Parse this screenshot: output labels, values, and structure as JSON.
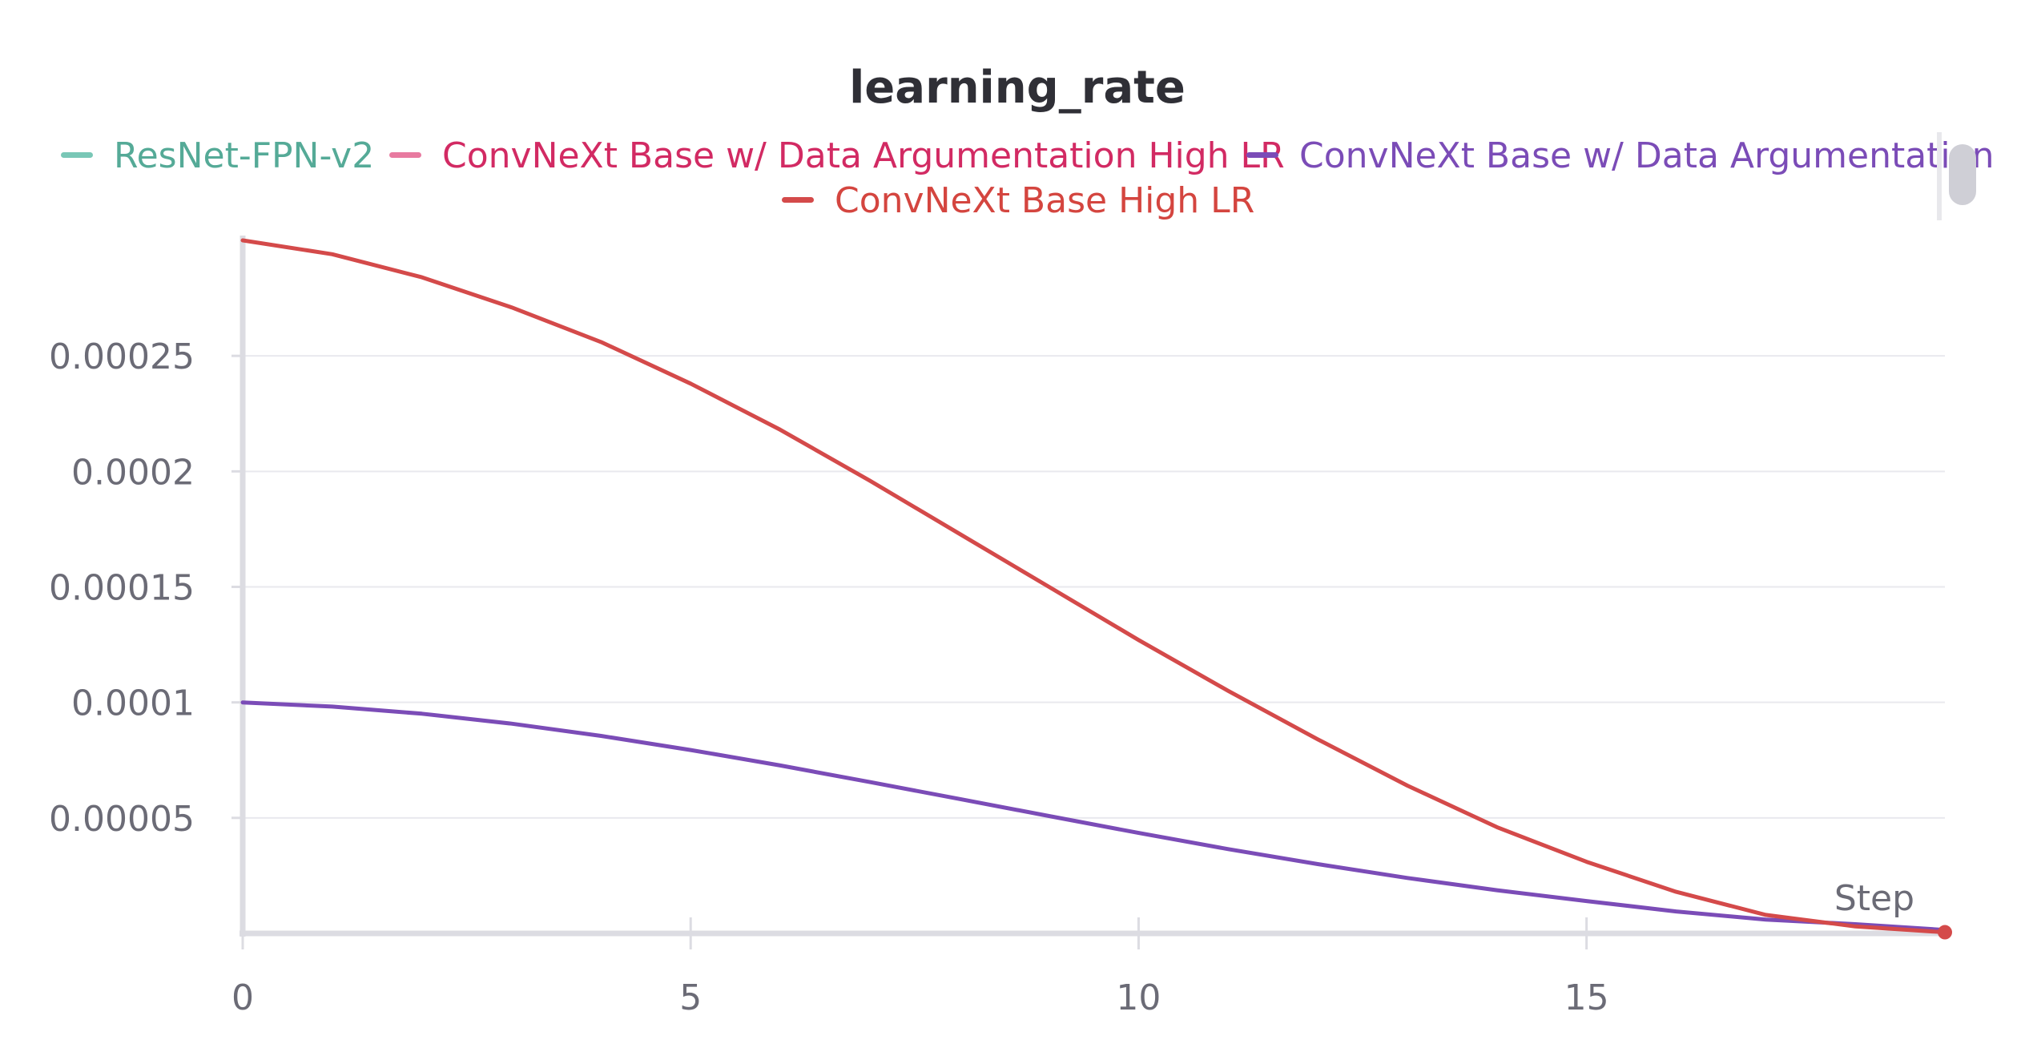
{
  "chart_data": {
    "type": "line",
    "title": "learning_rate",
    "xlabel": "Step",
    "ylabel": "",
    "xlim": [
      0,
      19
    ],
    "ylim": [
      0,
      0.0003
    ],
    "x_ticks": [
      0,
      5,
      10,
      15
    ],
    "x_tick_labels": [
      "0",
      "5",
      "10",
      "15"
    ],
    "y_ticks": [
      5e-05,
      0.0001,
      0.00015,
      0.0002,
      0.00025
    ],
    "y_tick_labels": [
      "0.00005",
      "0.0001",
      "0.00015",
      "0.0002",
      "0.00025"
    ],
    "grid": true,
    "legend_position": "top",
    "series": [
      {
        "name": "ResNet-FPN-v2",
        "color": "#79c7b6",
        "label_color": "#55aa97",
        "x": [],
        "y": []
      },
      {
        "name": "ConvNeXt Base w/ Data Argumentation High LR",
        "color": "#e87aa0",
        "label_color": "#d22a63",
        "x": [],
        "y": []
      },
      {
        "name": "ConvNeXt Base w/ Data Argumentation",
        "color": "#7b4cb7",
        "label_color": "#7b4cb7",
        "x": [
          0,
          1,
          2,
          3,
          4,
          5,
          6,
          7,
          8,
          9,
          10,
          11,
          12,
          13,
          14,
          15,
          16,
          17,
          18,
          19
        ],
        "y": [
          0.0001,
          9.82e-05,
          9.51e-05,
          9.08e-05,
          8.55e-05,
          7.94e-05,
          7.27e-05,
          6.55e-05,
          5.82e-05,
          5.08e-05,
          4.35e-05,
          3.65e-05,
          3e-05,
          2.4e-05,
          1.87e-05,
          1.4e-05,
          9.5e-06,
          6e-06,
          4e-06,
          1.5e-06
        ]
      },
      {
        "name": "ConvNeXt Base High LR",
        "color": "#d44a4a",
        "label_color": "#d4453f",
        "x": [
          0,
          1,
          2,
          3,
          4,
          5,
          6,
          7,
          8,
          9,
          10,
          11,
          12,
          13,
          14,
          15,
          16,
          17,
          18,
          19
        ],
        "y": [
          0.0003,
          0.000294,
          0.000284,
          0.000271,
          0.000256,
          0.000238,
          0.000218,
          0.000196,
          0.000173,
          0.00015,
          0.000127,
          0.000105,
          8.4e-05,
          6.4e-05,
          4.6e-05,
          3.1e-05,
          1.8e-05,
          8e-06,
          3e-06,
          5e-07
        ]
      }
    ]
  }
}
